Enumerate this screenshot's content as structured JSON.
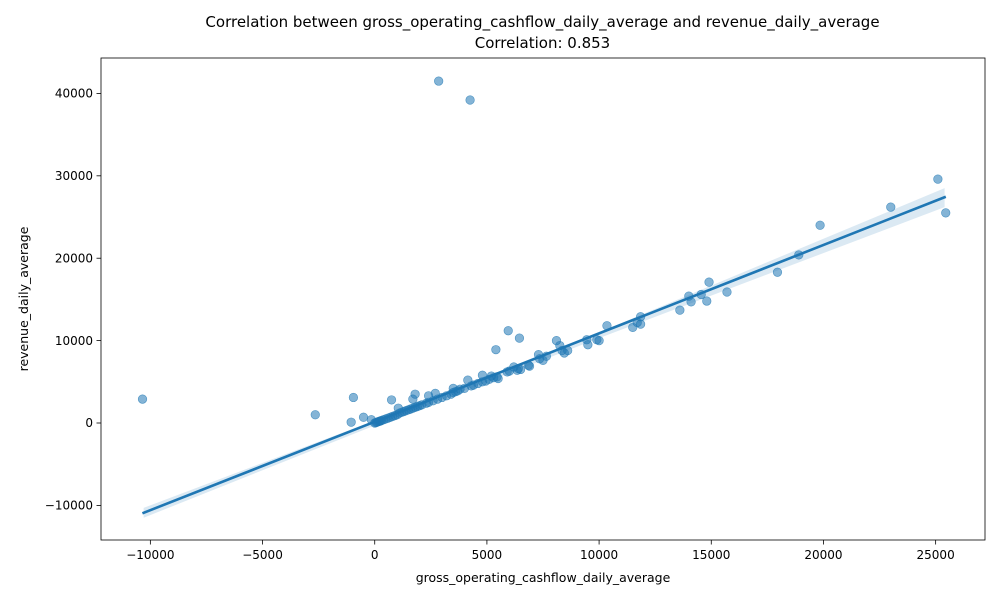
{
  "chart_data": {
    "type": "scatter",
    "title": "Correlation between gross_operating_cashflow_daily_average and revenue_daily_average",
    "subtitle": "Correlation: 0.853",
    "xlabel": "gross_operating_cashflow_daily_average",
    "ylabel": "revenue_daily_average",
    "xlim": [
      -12200,
      27200
    ],
    "ylim": [
      -14200,
      44300
    ],
    "x_ticks": [
      -10000,
      -5000,
      0,
      5000,
      10000,
      15000,
      20000,
      25000
    ],
    "x_tick_labels": [
      "−10000",
      "−5000",
      "0",
      "5000",
      "10000",
      "15000",
      "20000",
      "25000"
    ],
    "y_ticks": [
      -10000,
      0,
      10000,
      20000,
      30000,
      40000
    ],
    "y_tick_labels": [
      "−10000",
      "0",
      "10000",
      "20000",
      "30000",
      "40000"
    ],
    "grid": false,
    "colors": {
      "points": "#1f77b4",
      "line": "#1f77b4",
      "band": "#1f77b4"
    },
    "regression_line": {
      "x": [
        -10300,
        25400
      ],
      "y": [
        -10900,
        27400
      ]
    },
    "confidence_band": {
      "x": [
        -10300,
        0,
        10000,
        25400
      ],
      "lower": [
        -11500,
        -300,
        10300,
        26200
      ],
      "upper": [
        -10300,
        300,
        11000,
        28500
      ]
    },
    "points": {
      "x": [
        2850,
        4250,
        25100,
        25450,
        23000,
        19850,
        18900,
        17950,
        15700,
        14900,
        14800,
        14550,
        14100,
        14000,
        13600,
        11850,
        11700,
        11500,
        11850,
        10350,
        9450,
        9500,
        10000,
        9900,
        8600,
        8450,
        8350,
        8250,
        8100,
        7650,
        7500,
        7350,
        7300,
        6900,
        6850,
        6500,
        6400,
        6350,
        6200,
        6000,
        5900,
        5450,
        5500,
        5300,
        5100,
        4950,
        4800,
        4600,
        4400,
        4300,
        4150,
        4000,
        3800,
        3700,
        3600,
        3500,
        3400,
        3200,
        3000,
        2800,
        2700,
        2600,
        2400,
        2300,
        2100,
        2000,
        1900,
        1800,
        1800,
        1700,
        1600,
        1500,
        1400,
        1300,
        1200,
        1100,
        1000,
        1050,
        900,
        800,
        750,
        700,
        600,
        500,
        400,
        300,
        250,
        200,
        150,
        100,
        50,
        0,
        5950,
        6450,
        5400,
        -10350,
        -2650,
        -950,
        -1050,
        -500,
        -150,
        1700,
        2400,
        4800,
        3500,
        5200
      ],
      "y": [
        41500,
        39200,
        29600,
        25500,
        26200,
        24000,
        20400,
        18300,
        15900,
        17100,
        14800,
        15600,
        14700,
        15400,
        13700,
        12900,
        12200,
        11600,
        12000,
        11800,
        10100,
        9500,
        10000,
        10100,
        8800,
        8500,
        8800,
        9400,
        10000,
        8100,
        7600,
        7800,
        8300,
        6900,
        7000,
        6500,
        6600,
        6400,
        6800,
        6300,
        6200,
        5600,
        5400,
        5500,
        5300,
        5100,
        5000,
        4800,
        4600,
        4500,
        5200,
        4200,
        4100,
        3900,
        3800,
        3700,
        3500,
        3300,
        3100,
        2900,
        3600,
        2700,
        2500,
        2400,
        2200,
        2100,
        2000,
        1900,
        3500,
        1800,
        1700,
        1600,
        1500,
        1400,
        1300,
        1200,
        1000,
        1800,
        900,
        800,
        2800,
        700,
        600,
        500,
        400,
        300,
        250,
        200,
        150,
        100,
        50,
        0,
        11200,
        10300,
        8900,
        2900,
        1000,
        3100,
        100,
        700,
        400,
        2900,
        3300,
        5800,
        4200,
        5700
      ]
    }
  }
}
